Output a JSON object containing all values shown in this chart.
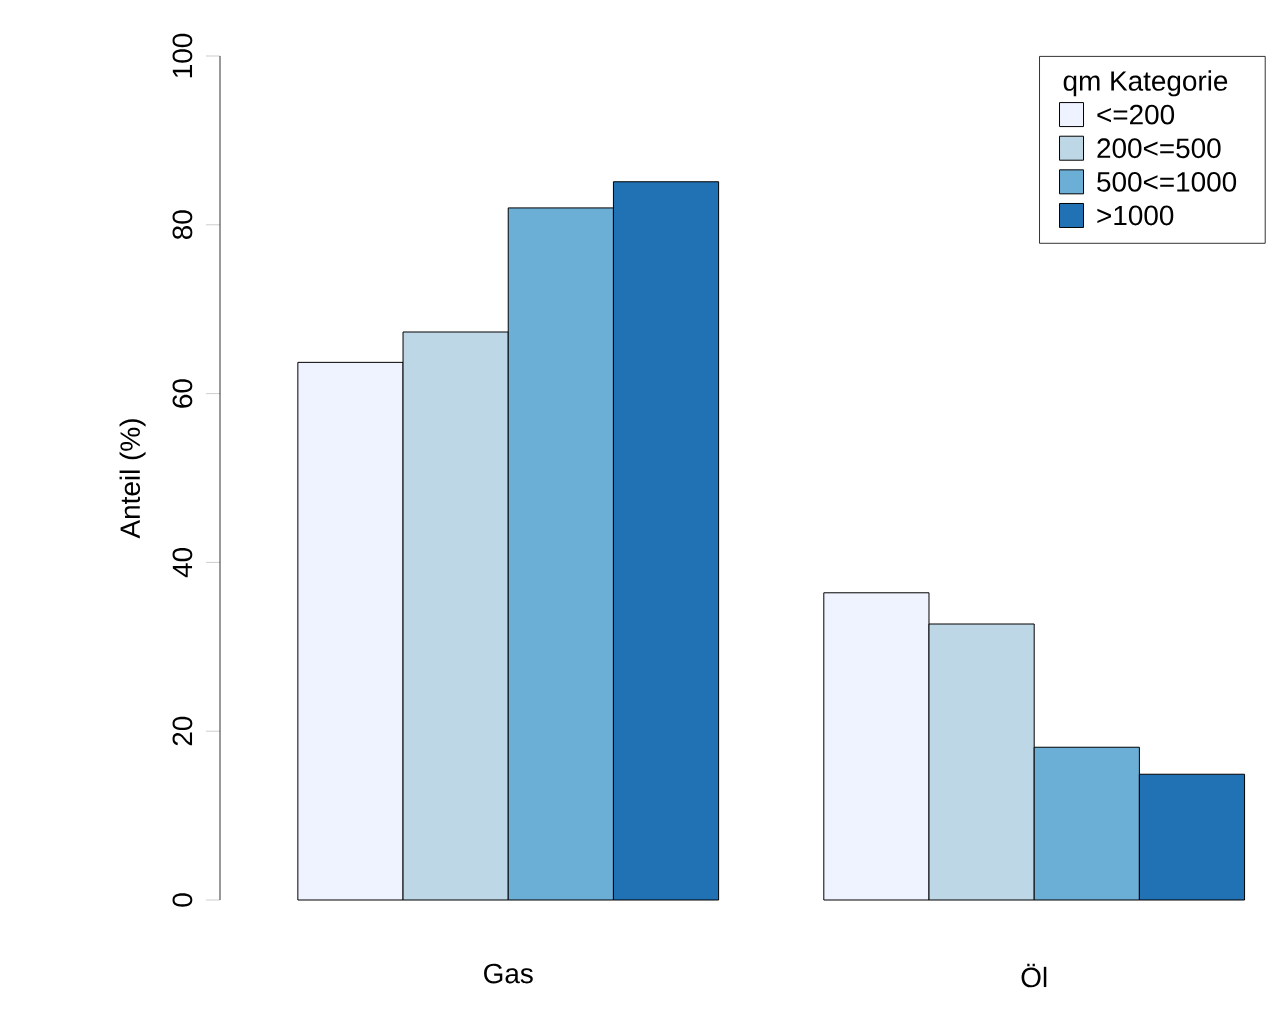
{
  "chart_data": {
    "type": "bar",
    "categories": [
      "Gas",
      "Öl"
    ],
    "ylabel": "Anteil (%)",
    "legend_title": "qm Kategorie",
    "legend": "top right",
    "series": [
      {
        "name": "<=200",
        "color": "#eff3ff",
        "values": [
          63.7,
          36.4
        ]
      },
      {
        "name": "200<=500",
        "color": "#bdd7e7",
        "values": [
          67.3,
          32.7
        ]
      },
      {
        "name": "500<=1000",
        "color": "#6baed6",
        "values": [
          82.0,
          18.1
        ]
      },
      {
        "name": ">1000",
        "color": "#2171b5",
        "values": [
          85.1,
          14.9
        ]
      }
    ],
    "ylim": [
      0,
      100
    ],
    "yticks": [
      0,
      20,
      40,
      60,
      80,
      100
    ]
  }
}
